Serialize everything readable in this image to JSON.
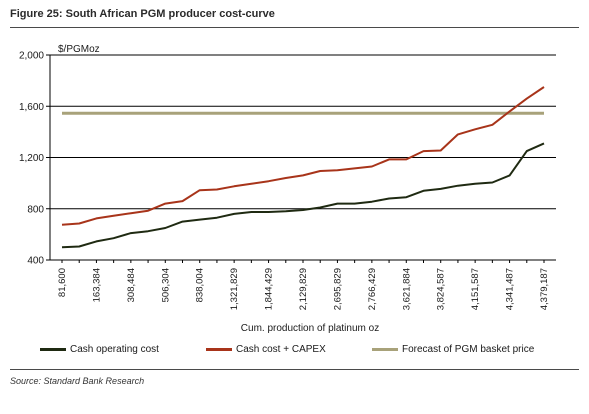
{
  "figure_title": "Figure 25: South African PGM producer cost-curve",
  "source_note": "Source: Standard Bank Research",
  "colors": {
    "cash_operating_cost": "#1f2a12",
    "cash_cost_capex": "#a8341a",
    "forecast_basket": "#a8a27a",
    "grid": "#000000"
  },
  "chart_data": {
    "type": "line",
    "title": "Figure 25: South African PGM producer cost-curve",
    "ylabel": "$/PGMoz",
    "xlabel": "Cum. production of platinum oz",
    "ylim": [
      400,
      2000
    ],
    "yticks": [
      "2,000",
      "1,600",
      "1,200",
      "800",
      "400"
    ],
    "ytick_values": [
      2000,
      1600,
      1200,
      800,
      400
    ],
    "x_tick_labels": [
      "81,600",
      "163,384",
      "308,484",
      "506,304",
      "838,004",
      "1,321,829",
      "1,844,429",
      "2,129,829",
      "2,695,829",
      "2,766,429",
      "3,621,884",
      "3,824,587",
      "4,151,587",
      "4,341,487",
      "4,379,187"
    ],
    "grid": "horizontal",
    "legend_position": "bottom",
    "series": [
      {
        "name": "Cash operating cost",
        "values": [
          500,
          505,
          545,
          570,
          610,
          625,
          650,
          700,
          715,
          730,
          760,
          775,
          775,
          780,
          790,
          810,
          840,
          840,
          855,
          880,
          890,
          940,
          955,
          980,
          995,
          1005,
          1060,
          1250,
          1310
        ]
      },
      {
        "name": "Cash cost + CAPEX",
        "values": [
          675,
          685,
          725,
          745,
          765,
          785,
          840,
          860,
          945,
          950,
          975,
          995,
          1015,
          1040,
          1060,
          1095,
          1100,
          1115,
          1130,
          1185,
          1185,
          1250,
          1255,
          1380,
          1420,
          1455,
          1560,
          1660,
          1750
        ]
      },
      {
        "name": "Forecast of PGM basket price",
        "values": [
          1545,
          1545,
          1545,
          1545,
          1545,
          1545,
          1545,
          1545,
          1545,
          1545,
          1545,
          1545,
          1545,
          1545,
          1545,
          1545,
          1545,
          1545,
          1545,
          1545,
          1545,
          1545,
          1545,
          1545,
          1545,
          1545,
          1545,
          1545,
          1545
        ]
      }
    ]
  }
}
